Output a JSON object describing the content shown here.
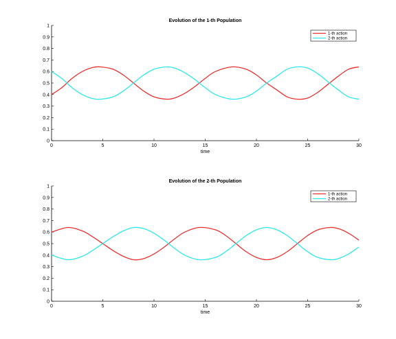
{
  "chart_data": [
    {
      "type": "line",
      "title": "Evolution of the 1-th Population",
      "xlabel": "time",
      "ylabel": "",
      "xlim": [
        0,
        30
      ],
      "ylim": [
        0,
        1
      ],
      "xticks": [
        0,
        5,
        10,
        15,
        20,
        25,
        30
      ],
      "yticks": [
        0,
        0.1,
        0.2,
        0.3,
        0.4,
        0.5,
        0.6,
        0.7,
        0.8,
        0.9,
        1
      ],
      "grid": false,
      "legend_position": "top-right",
      "x": [
        0,
        1,
        2,
        3,
        4,
        4.8,
        6,
        7,
        8,
        9,
        10,
        11.2,
        12,
        13,
        14,
        15,
        16,
        17.6,
        19,
        20,
        21,
        22,
        23,
        24,
        25,
        26,
        27,
        28,
        29,
        30
      ],
      "series": [
        {
          "name": "1-th action",
          "color": "#e8312f",
          "values": [
            0.4,
            0.46,
            0.54,
            0.6,
            0.635,
            0.64,
            0.62,
            0.57,
            0.5,
            0.43,
            0.38,
            0.36,
            0.37,
            0.41,
            0.47,
            0.54,
            0.6,
            0.64,
            0.62,
            0.57,
            0.5,
            0.44,
            0.38,
            0.36,
            0.37,
            0.42,
            0.49,
            0.56,
            0.62,
            0.64
          ]
        },
        {
          "name": "2-th action",
          "color": "#2ee8e8",
          "values": [
            0.6,
            0.54,
            0.46,
            0.4,
            0.365,
            0.36,
            0.38,
            0.43,
            0.5,
            0.57,
            0.62,
            0.64,
            0.63,
            0.59,
            0.53,
            0.46,
            0.4,
            0.36,
            0.38,
            0.43,
            0.5,
            0.56,
            0.62,
            0.64,
            0.63,
            0.58,
            0.51,
            0.44,
            0.38,
            0.36
          ]
        }
      ]
    },
    {
      "type": "line",
      "title": "Evolution of the 2-th Population",
      "xlabel": "time",
      "ylabel": "",
      "xlim": [
        0,
        30
      ],
      "ylim": [
        0,
        1
      ],
      "xticks": [
        0,
        5,
        10,
        15,
        20,
        25,
        30
      ],
      "yticks": [
        0,
        0.1,
        0.2,
        0.3,
        0.4,
        0.5,
        0.6,
        0.7,
        0.8,
        0.9,
        1
      ],
      "grid": false,
      "legend_position": "top-right",
      "x": [
        0,
        1.6,
        3,
        4,
        5,
        6,
        7,
        8,
        9,
        10,
        11,
        12,
        13,
        14.4,
        16,
        17,
        18,
        19,
        20,
        21,
        22,
        23,
        24,
        25,
        26,
        27.2,
        28,
        29,
        30
      ],
      "series": [
        {
          "name": "1-th action",
          "color": "#e8312f",
          "values": [
            0.6,
            0.64,
            0.61,
            0.56,
            0.5,
            0.44,
            0.39,
            0.36,
            0.37,
            0.41,
            0.47,
            0.54,
            0.6,
            0.64,
            0.62,
            0.57,
            0.5,
            0.43,
            0.38,
            0.36,
            0.38,
            0.43,
            0.5,
            0.57,
            0.62,
            0.64,
            0.63,
            0.59,
            0.53
          ]
        },
        {
          "name": "2-th action",
          "color": "#2ee8e8",
          "values": [
            0.4,
            0.36,
            0.39,
            0.44,
            0.5,
            0.56,
            0.61,
            0.64,
            0.63,
            0.59,
            0.53,
            0.46,
            0.4,
            0.36,
            0.38,
            0.43,
            0.5,
            0.57,
            0.62,
            0.64,
            0.62,
            0.57,
            0.5,
            0.43,
            0.38,
            0.36,
            0.37,
            0.41,
            0.47
          ]
        }
      ]
    }
  ]
}
